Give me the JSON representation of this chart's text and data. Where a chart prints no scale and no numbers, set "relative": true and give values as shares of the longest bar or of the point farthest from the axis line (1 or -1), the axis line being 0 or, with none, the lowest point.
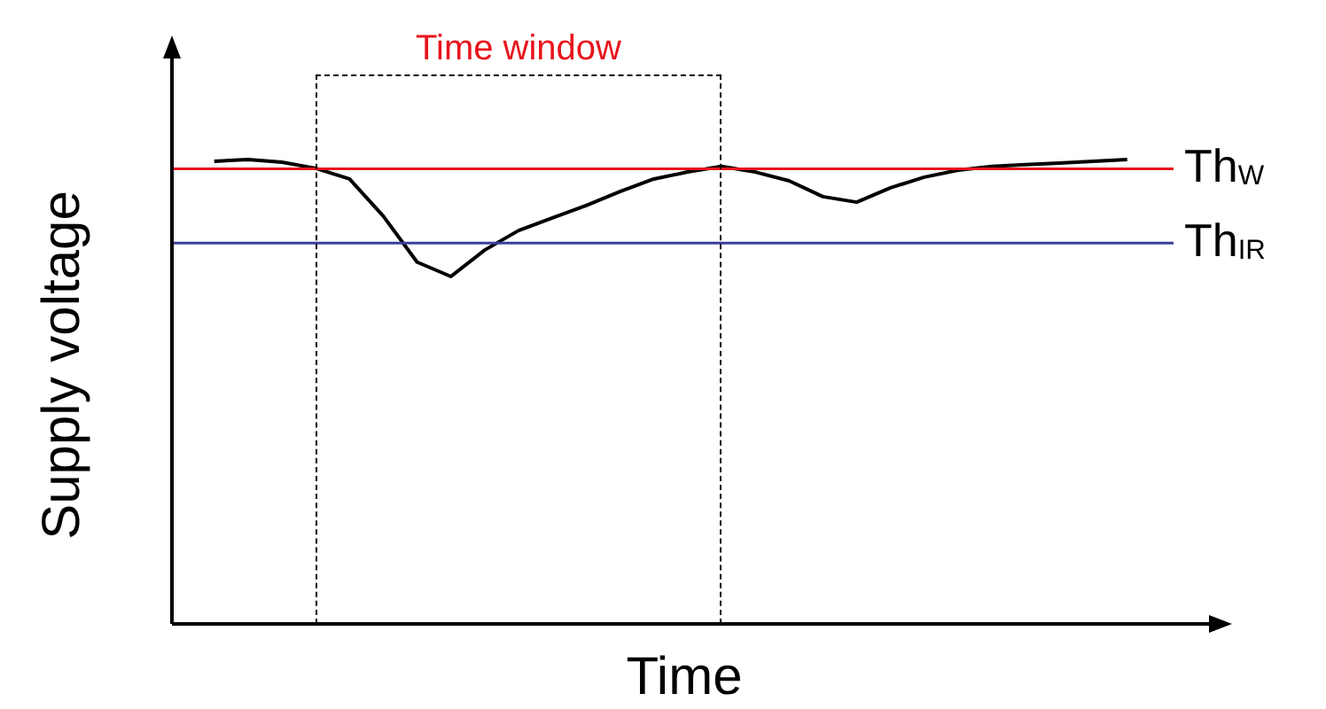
{
  "chart_data": {
    "type": "line",
    "relative": true,
    "xlabel": "Time",
    "ylabel": "Supply voltage",
    "legend": false,
    "marker": "none",
    "categories": [
      null,
      null,
      null,
      null,
      null,
      null,
      null,
      null,
      null,
      null,
      null,
      null,
      null,
      null,
      null,
      null,
      null,
      null,
      null,
      null,
      null,
      null,
      null,
      null,
      null,
      null,
      null,
      null
    ],
    "series": [
      {
        "color": "#000000",
        "values": [
          0.996,
          1.0,
          0.994,
          0.981,
          0.958,
          0.878,
          0.779,
          0.748,
          0.805,
          0.847,
          0.874,
          0.901,
          0.931,
          0.958,
          0.973,
          0.985,
          0.973,
          0.954,
          0.92,
          0.908,
          0.939,
          0.962,
          0.977,
          0.985,
          0.989,
          0.992,
          0.996,
          1.0
        ]
      }
    ],
    "ref_lines": [
      {
        "axis": "y",
        "value": 0.98,
        "label": "Th$_{W}$",
        "color": "#e8141c"
      },
      {
        "axis": "y",
        "value": 0.82,
        "label": "Th$_{IR}$",
        "color": "#3b3f9c"
      }
    ],
    "annotations": [
      "Time window"
    ]
  }
}
